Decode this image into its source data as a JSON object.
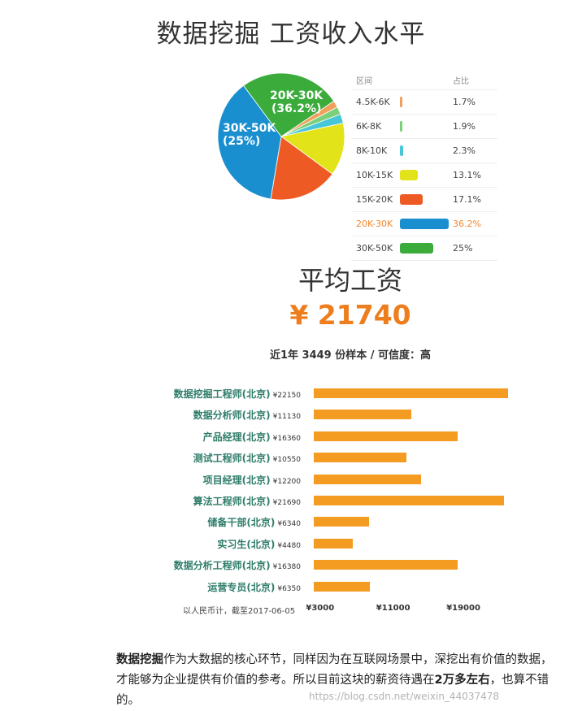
{
  "chart_data": [
    {
      "type": "pie",
      "title": "数据挖掘 工资收入水平",
      "legend_headers": [
        "区间",
        "占比"
      ],
      "slices": [
        {
          "range": "4.5K-6K",
          "label": "1.7%",
          "value": 1.7,
          "color": "#f0a05a"
        },
        {
          "range": "6K-8K",
          "label": "1.9%",
          "value": 1.9,
          "color": "#7dd07a"
        },
        {
          "range": "8K-10K",
          "label": "2.3%",
          "value": 2.3,
          "color": "#46c6d8"
        },
        {
          "range": "10K-15K",
          "label": "13.1%",
          "value": 13.1,
          "color": "#e3e31a"
        },
        {
          "range": "15K-20K",
          "label": "17.1%",
          "value": 17.1,
          "color": "#ee5a24"
        },
        {
          "range": "20K-30K",
          "label": "36.2%",
          "value": 36.2,
          "color": "#1a8fd0",
          "highlight": true
        },
        {
          "range": "30K-50K",
          "label": "25%",
          "value": 25,
          "color": "#3bab3b"
        }
      ],
      "pie_labels": [
        {
          "line1": "20K-30K",
          "line2": "(36.2%)"
        },
        {
          "line1": "30K-50K",
          "line2": "(25%)"
        }
      ]
    },
    {
      "type": "bar",
      "categories": [
        "数据挖掘工程师(北京)",
        "数据分析师(北京)",
        "产品经理(北京)",
        "测试工程师(北京)",
        "项目经理(北京)",
        "算法工程师(北京)",
        "储备干部(北京)",
        "实习生(北京)",
        "数据分析工程师(北京)",
        "运营专员(北京)"
      ],
      "value_labels": [
        "¥22150",
        "¥11130",
        "¥16360",
        "¥10550",
        "¥12200",
        "¥21690",
        "¥6340",
        "¥4480",
        "¥16380",
        "¥6350"
      ],
      "values": [
        22150,
        11130,
        16360,
        10550,
        12200,
        21690,
        6340,
        4480,
        16380,
        6350
      ],
      "xlim": [
        0,
        25000
      ],
      "ticks": [
        {
          "value": 3000,
          "label": "¥3000"
        },
        {
          "value": 11000,
          "label": "¥11000"
        },
        {
          "value": 19000,
          "label": "¥19000"
        }
      ],
      "footnote": "以人民币计，截至2017-06-05",
      "color": "#f39c21"
    }
  ],
  "average": {
    "title": "平均工资",
    "value": "¥ 21740",
    "sub": "近1年 3449 份样本 / 可信度：高"
  },
  "paragraph": {
    "bold1": "数据挖掘",
    "text1": "作为大数据的核心环节，同样因为在互联网场景中，深挖出有价值的数据，才能够为企业提供有价值的参考。所以目前这块的薪资待遇在",
    "bold2": "2万多左右",
    "text2": "，也算不错的。"
  },
  "watermark": "https://blog.csdn.net/weixin_44037478"
}
